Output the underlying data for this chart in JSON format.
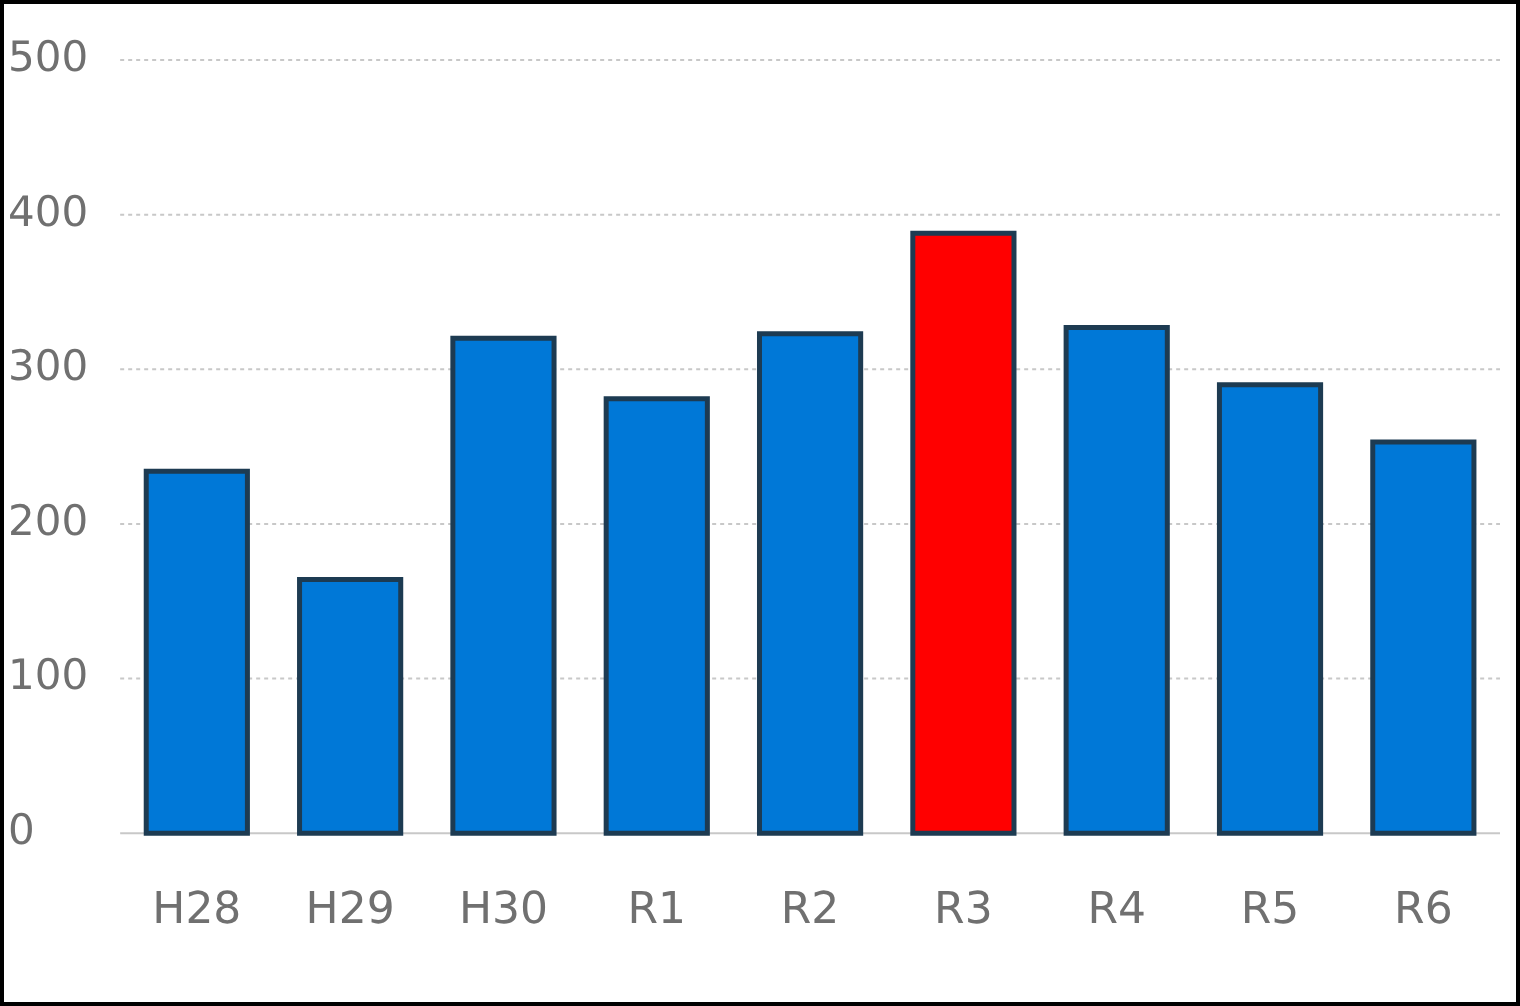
{
  "chart_data": {
    "type": "bar",
    "categories": [
      "H28",
      "H29",
      "H30",
      "R1",
      "R2",
      "R3",
      "R4",
      "R5",
      "R6"
    ],
    "values": [
      234,
      164,
      320,
      281,
      323,
      388,
      327,
      290,
      253
    ],
    "colors": [
      "#0078d7",
      "#0078d7",
      "#0078d7",
      "#0078d7",
      "#0078d7",
      "#ff0000",
      "#0078d7",
      "#0078d7",
      "#0078d7"
    ],
    "ylim": [
      0,
      500
    ],
    "yticks": [
      0,
      100,
      200,
      300,
      400,
      500
    ],
    "grid": "y"
  }
}
